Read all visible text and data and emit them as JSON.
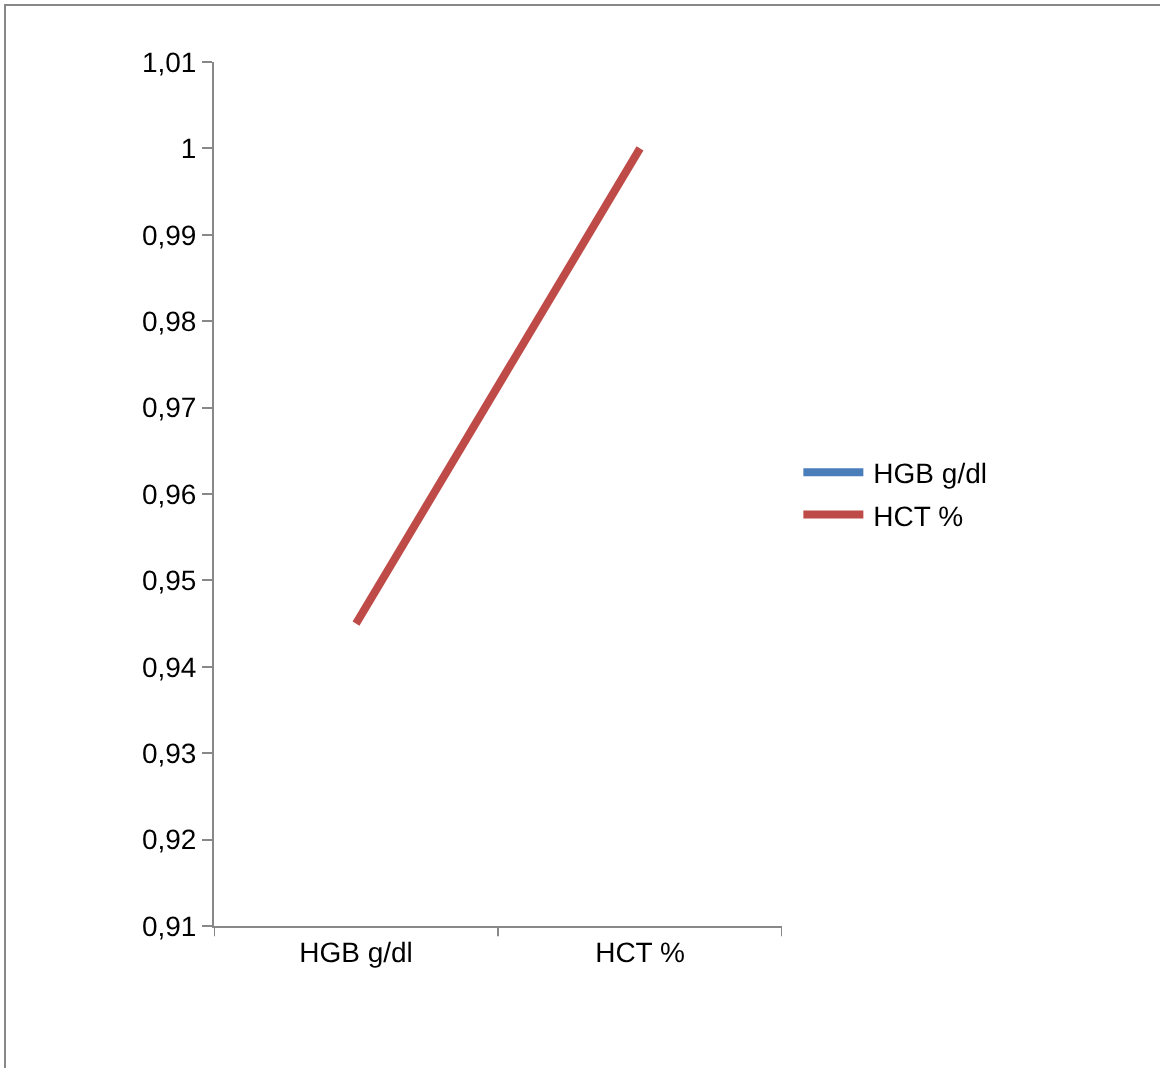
{
  "chart_data": {
    "type": "line",
    "categories": [
      "HGB g/dl",
      "HCT %"
    ],
    "series": [
      {
        "name": "HGB g/dl",
        "color": "#4a7ebb",
        "values": [
          null,
          null
        ]
      },
      {
        "name": "HCT %",
        "color": "#be4b48",
        "values": [
          0.945,
          1
        ]
      }
    ],
    "ylim": [
      0.91,
      1.01
    ],
    "yticks": [
      {
        "value": 0.91,
        "label": "0,91"
      },
      {
        "value": 0.92,
        "label": "0,92"
      },
      {
        "value": 0.93,
        "label": "0,93"
      },
      {
        "value": 0.94,
        "label": "0,94"
      },
      {
        "value": 0.95,
        "label": "0,95"
      },
      {
        "value": 0.96,
        "label": "0,96"
      },
      {
        "value": 0.97,
        "label": "0,97"
      },
      {
        "value": 0.98,
        "label": "0,98"
      },
      {
        "value": 0.99,
        "label": "0,99"
      },
      {
        "value": 1,
        "label": "1"
      },
      {
        "value": 1.01,
        "label": "1,01"
      }
    ],
    "grid": false,
    "legend": "right",
    "marker": "none",
    "line_style": "solid"
  }
}
